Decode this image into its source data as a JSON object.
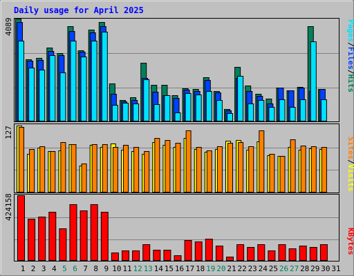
{
  "title": "Daily usage for April 2025",
  "colors": {
    "background": "#c0c0c0",
    "title": "#0000ff",
    "hits": "#00805c",
    "files": "#0040ff",
    "pages": "#00e0ff",
    "visits": "#ffff00",
    "sites": "#ff8000",
    "kbytes": "#ff0000",
    "weekend_day": "#00805c",
    "weekday": "#000000",
    "separator": "#000000"
  },
  "chart_data": [
    {
      "type": "bar",
      "panel": "top",
      "max_label": "4089",
      "legend": [
        "Pages",
        "/",
        "Files",
        "/",
        "Hits"
      ],
      "categories": [
        "1",
        "2",
        "3",
        "4",
        "5",
        "6",
        "7",
        "8",
        "9",
        "10",
        "11",
        "12",
        "13",
        "14",
        "15",
        "16",
        "17",
        "18",
        "19",
        "20",
        "21",
        "22",
        "23",
        "24",
        "25",
        "26",
        "27",
        "28",
        "29",
        "30",
        "31"
      ],
      "ylim": [
        0,
        4089
      ],
      "series": [
        {
          "name": "Hits",
          "values": [
            4089,
            2460,
            2520,
            2930,
            2720,
            3780,
            2840,
            3660,
            3940,
            1520,
            860,
            950,
            2340,
            1460,
            1460,
            1040,
            1330,
            1300,
            1760,
            1200,
            490,
            2160,
            1440,
            1100,
            900,
            1350,
            1240,
            1370,
            3780,
            1300,
            0
          ]
        },
        {
          "name": "Files",
          "values": [
            3960,
            2410,
            2440,
            2800,
            2630,
            3600,
            2780,
            3530,
            3790,
            1090,
            800,
            860,
            1740,
            1170,
            1050,
            920,
            1270,
            1210,
            1640,
            1150,
            430,
            1720,
            1200,
            1020,
            710,
            1340,
            1240,
            1340,
            1200,
            1280,
            0
          ]
        },
        {
          "name": "Pages",
          "values": [
            3200,
            2130,
            2050,
            2630,
            1940,
            3210,
            2580,
            3210,
            3560,
            670,
            740,
            700,
            1680,
            680,
            1030,
            370,
            1120,
            1070,
            1220,
            860,
            320,
            1800,
            700,
            860,
            590,
            890,
            580,
            890,
            3170,
            890,
            0
          ]
        }
      ]
    },
    {
      "type": "bar",
      "panel": "middle",
      "max_label": "127",
      "legend": [
        "Sites",
        "/",
        "Visits"
      ],
      "categories": [
        "1",
        "2",
        "3",
        "4",
        "5",
        "6",
        "7",
        "8",
        "9",
        "10",
        "11",
        "12",
        "13",
        "14",
        "15",
        "16",
        "17",
        "18",
        "19",
        "20",
        "21",
        "22",
        "23",
        "24",
        "25",
        "26",
        "27",
        "28",
        "29",
        "30",
        "31"
      ],
      "ylim": [
        0,
        127
      ],
      "series": [
        {
          "name": "Visits",
          "values": [
            127,
            73,
            85,
            78,
            80,
            92,
            51,
            90,
            86,
            93,
            81,
            79,
            73,
            96,
            90,
            87,
            104,
            83,
            77,
            82,
            98,
            100,
            81,
            97,
            71,
            69,
            86,
            81,
            84,
            82,
            0
          ]
        },
        {
          "name": "Sites",
          "values": [
            125,
            83,
            88,
            79,
            96,
            91,
            55,
            91,
            92,
            87,
            90,
            87,
            79,
            103,
            99,
            94,
            118,
            87,
            80,
            88,
            94,
            96,
            88,
            118,
            73,
            70,
            101,
            89,
            88,
            87,
            0
          ]
        }
      ]
    },
    {
      "type": "bar",
      "panel": "bottom",
      "max_label": "424158",
      "legend": [
        "KBytes"
      ],
      "categories": [
        "1",
        "2",
        "3",
        "4",
        "5",
        "6",
        "7",
        "8",
        "9",
        "10",
        "11",
        "12",
        "13",
        "14",
        "15",
        "16",
        "17",
        "18",
        "19",
        "20",
        "21",
        "22",
        "23",
        "24",
        "25",
        "26",
        "27",
        "28",
        "29",
        "30",
        "31"
      ],
      "ylim": [
        0,
        424158
      ],
      "series": [
        {
          "name": "KBytes",
          "values": [
            424158,
            273000,
            285000,
            315000,
            210000,
            365000,
            325000,
            365000,
            318000,
            55000,
            65000,
            65000,
            105000,
            70000,
            70000,
            35000,
            135000,
            125000,
            145000,
            100000,
            25000,
            108000,
            88000,
            105000,
            68000,
            105000,
            80000,
            98000,
            90000,
            105000,
            0
          ]
        }
      ]
    }
  ],
  "x_labels": [
    {
      "label": "1",
      "weekend": false
    },
    {
      "label": "2",
      "weekend": false
    },
    {
      "label": "3",
      "weekend": false
    },
    {
      "label": "4",
      "weekend": false
    },
    {
      "label": "5",
      "weekend": true
    },
    {
      "label": "6",
      "weekend": true
    },
    {
      "label": "7",
      "weekend": false
    },
    {
      "label": "8",
      "weekend": false
    },
    {
      "label": "9",
      "weekend": false
    },
    {
      "label": "10",
      "weekend": false
    },
    {
      "label": "11",
      "weekend": false
    },
    {
      "label": "12",
      "weekend": true
    },
    {
      "label": "13",
      "weekend": true
    },
    {
      "label": "14",
      "weekend": false
    },
    {
      "label": "15",
      "weekend": false
    },
    {
      "label": "16",
      "weekend": false
    },
    {
      "label": "17",
      "weekend": false
    },
    {
      "label": "18",
      "weekend": false
    },
    {
      "label": "19",
      "weekend": true
    },
    {
      "label": "20",
      "weekend": true
    },
    {
      "label": "21",
      "weekend": false
    },
    {
      "label": "22",
      "weekend": false
    },
    {
      "label": "23",
      "weekend": false
    },
    {
      "label": "24",
      "weekend": false
    },
    {
      "label": "25",
      "weekend": false
    },
    {
      "label": "26",
      "weekend": true
    },
    {
      "label": "27",
      "weekend": true
    },
    {
      "label": "28",
      "weekend": false
    },
    {
      "label": "29",
      "weekend": false
    },
    {
      "label": "30",
      "weekend": false
    },
    {
      "label": "31",
      "weekend": false
    }
  ]
}
